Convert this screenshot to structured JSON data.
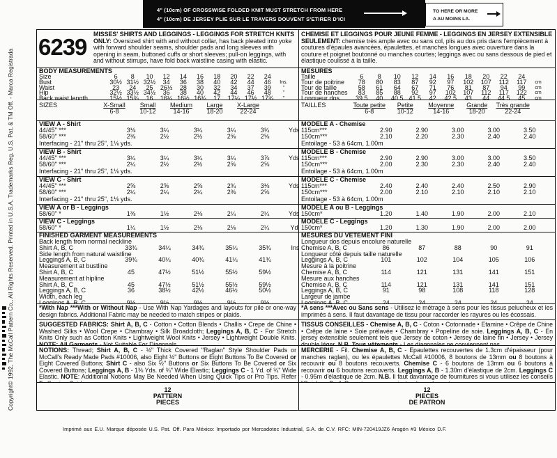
{
  "banner": {
    "line1": "4\" (10cm) OF CROSSWISE FOLDED KNIT MUST STRETCH FROM HERE",
    "line2": "4\" (10cm) DE JERSEY PLIE SUR LE TRAVERS DOUVENT S'ETIRER D'ICI",
    "box_line1": "TO HERE OR MORE",
    "box_line2": "A AU MOINS LA."
  },
  "side_text": "Copyright© 1992, The McCall Pattern Co., All Rights Reserved. Printed in U.S.A. Trademarks Reg. U.S. Pat. & TM Off. - Marca Registrada",
  "left": {
    "pattern_number": "6239",
    "description": [
      {
        "t": "MISSES' SHIRTS AND LEGGINGS - LEGGINGS FOR STRETCH KNITS ONLY:",
        "b": true
      },
      {
        "t": " Oversized shirt with and without collar, has back pleated into yoke with forward shoulder seams, shoulder pads and long sleeves with opening in seam, buttoned cuffs or short sleeves; pull-on leggings, with and without stirrups, have fold back waistline casing with elastic."
      }
    ],
    "body": {
      "heading": "BODY MEASUREMENTS",
      "rows": [
        {
          "label": "Size",
          "values": [
            "6",
            "8",
            "10",
            "12",
            "14",
            "16",
            "18",
            "20",
            "22",
            "24"
          ],
          "unit": ""
        },
        {
          "label": "Bust",
          "values": [
            "30½",
            "31½",
            "32½",
            "34",
            "36",
            "38",
            "40",
            "42",
            "44",
            "46"
          ],
          "unit": "Ins."
        },
        {
          "label": "Waist",
          "values": [
            "23",
            "24",
            "25",
            "26½",
            "28",
            "30",
            "32",
            "34",
            "37",
            "39"
          ],
          "unit": "\""
        },
        {
          "label": "Hip",
          "values": [
            "32½",
            "33½",
            "34½",
            "36",
            "38",
            "40",
            "42",
            "44",
            "46",
            "48"
          ],
          "unit": "\""
        },
        {
          "label": "Back waist length",
          "values": [
            "15½",
            "15¾",
            "16",
            "16¼",
            "16½",
            "16¾",
            "17",
            "17¼",
            "17½",
            "17¾"
          ],
          "unit": "\""
        }
      ]
    },
    "sizes": {
      "label": "SIZES",
      "items": [
        {
          "name": "X-Small",
          "range": "6-8"
        },
        {
          "name": "Small",
          "range": "10-12"
        },
        {
          "name": "Medium",
          "range": "14-16"
        },
        {
          "name": "Large",
          "range": "18-20"
        },
        {
          "name": "X-Large",
          "range": "22-24"
        }
      ]
    },
    "yardage": [
      {
        "heading": "VIEW A - Shirt",
        "rows": [
          {
            "label": "44/45\" ***",
            "values": [
              "3⅛",
              "3¼",
              "3¼",
              "3¼",
              "3¾"
            ],
            "unit": "Yds."
          },
          {
            "label": "58/60\" ***",
            "values": [
              "2⅜",
              "2½",
              "2½",
              "2⅝",
              "2⅝"
            ],
            "unit": "\""
          }
        ],
        "note": "Interfacing - 21\" thru 25\", 1⅛ yds."
      },
      {
        "heading": "VIEW B - Shirt",
        "rows": [
          {
            "label": "44/45\" ***",
            "values": [
              "3¼",
              "3¼",
              "3¼",
              "3¼",
              "3⅞"
            ],
            "unit": "Yds."
          },
          {
            "label": "58/60\" ***",
            "values": [
              "2¼",
              "2½",
              "2½",
              "2⅝",
              "2⅝"
            ],
            "unit": "\""
          }
        ],
        "note": "Interfacing - 21\" thru 25\", 1⅛ yds."
      },
      {
        "heading": "VIEW C - Shirt",
        "rows": [
          {
            "label": "44/45\" ***",
            "values": [
              "2⅝",
              "2⅝",
              "2⅝",
              "2¾",
              "3⅛"
            ],
            "unit": "Yds."
          },
          {
            "label": "58/60\" ***",
            "values": [
              "2¼",
              "2¼",
              "2¼",
              "2⅜",
              "2⅝"
            ],
            "unit": "\""
          }
        ],
        "note": "Interfacing - 21\" thru 25\", 1⅛ yds."
      },
      {
        "heading": "VIEW A or B - Leggings",
        "rows": [
          {
            "label": "58/60\" *",
            "values": [
              "1⅜",
              "1½",
              "2⅛",
              "2¼",
              "2¼"
            ],
            "unit": "Yds."
          }
        ]
      },
      {
        "heading": "VIEW C - Leggings",
        "rows": [
          {
            "label": "58/60\" *",
            "values": [
              "1¼",
              "1½",
              "2⅛",
              "2⅛",
              "2¼"
            ],
            "unit": "Yds"
          }
        ]
      }
    ],
    "finished": {
      "heading": "FINISHED GARMENT MEASUREMENTS",
      "rows": [
        {
          "label": "Back length from normal neckline"
        },
        {
          "label": "Shirt A, B, C",
          "values": [
            "33¾",
            "34¼",
            "34¾",
            "35¼",
            "35¾"
          ],
          "unit": "Ins."
        },
        {
          "label": "Side length from natural waistline"
        },
        {
          "label": "Leggings A, B, C",
          "values": [
            "39¾",
            "40¼",
            "40¾",
            "41¼",
            "41¾"
          ],
          "unit": "\""
        },
        {
          "label": "Measurement at bustline"
        },
        {
          "label": "Shirt A, B, C",
          "values": [
            "45",
            "47½",
            "51½",
            "55½",
            "59½"
          ],
          "unit": "\""
        },
        {
          "label": "Measurement at hipline"
        },
        {
          "label": "Shirt A, B, C",
          "values": [
            "45",
            "47½",
            "51½",
            "55½",
            "59½"
          ],
          "unit": "\""
        },
        {
          "label": "Leggings A, B, C",
          "values": [
            "36",
            "38½",
            "42½",
            "46½",
            "50½"
          ],
          "unit": "\""
        },
        {
          "label": "Width, each leg"
        },
        {
          "label": "Leggings A, B, C",
          "values": [
            "9½",
            "9½",
            "9½",
            "9½",
            "9½"
          ],
          "unit": "\""
        }
      ]
    },
    "nap": [
      {
        "t": "*With Nap ***With or Without Nap",
        "b": true
      },
      {
        "t": " - Use With Nap Yardages and layouts for pile or one-way design fabrics. Additional Fabric may be needed to match stripes or plaids."
      }
    ],
    "fabrics": [
      {
        "t": "SUGGESTED FABRICS: Shirt A, B, C",
        "b": true
      },
      {
        "t": " - Cotton • Cotton Blends • Challis • Crepe de Chine • Washed Silks • Wool Crepe • Chambray • Silk Broadcloth; "
      },
      {
        "t": "Leggings A, B, C",
        "b": true
      },
      {
        "t": " - For Stretch Knits Only such as Cotton Knits • Lightweight Wool Knits • Jersey • Lightweight Double Knits. "
      },
      {
        "t": "NOTE: All Garments",
        "b": true
      },
      {
        "t": " - Not Suitable For Diagonals."
      }
    ],
    "notions": [
      {
        "t": "NOTIONS:",
        "b": true
      },
      {
        "t": " Thread; "
      },
      {
        "t": "Shirt A, B, C",
        "b": true
      },
      {
        "t": " - ½\" Thick Covered \"Raglan\" Style Shoulder Pads or McCall's Ready Made Pads #10006, also Eight ½\" Buttons "
      },
      {
        "t": "or",
        "b": true
      },
      {
        "t": " Eight Buttons To Be Covered "
      },
      {
        "t": "or",
        "b": true
      },
      {
        "t": " Eight Covered Buttons; "
      },
      {
        "t": "Shirt C",
        "b": true
      },
      {
        "t": " - also Six ½\" Buttons "
      },
      {
        "t": "or",
        "b": true
      },
      {
        "t": " Six Buttons To Be Covered "
      },
      {
        "t": "or",
        "b": true
      },
      {
        "t": " Six Covered Buttons; "
      },
      {
        "t": "Leggings A, B",
        "b": true
      },
      {
        "t": " - 1⅜ Yds. of ¾\" Wide Elastic; "
      },
      {
        "t": "Leggings C",
        "b": true
      },
      {
        "t": " - 1 Yd. of ¾\" Wide Elastic. "
      },
      {
        "t": "NOTE",
        "b": true
      },
      {
        "t": ": Additional Notions May Be Needed When Using Quick Tips or Pro Tips. Refer To Sewing Guide."
      }
    ],
    "pieces": [
      "12",
      "PATTERN",
      "PIECES"
    ]
  },
  "right": {
    "description": [
      {
        "t": "CHEMISE ET LEGGINGS POUR JEUNE FEMME - LEGGINGS EN JERSEY EXTENSIBLE SEULEMENT:",
        "b": true
      },
      {
        "t": " chemise très ample avec ou sans col, plis au dos pris dans l'empiècement à coutures d'épaules avancées, épaulettes, et manches longues avec ouverture dans la couture et poignet boutonné ou manches courtes; leggings avec ou sans dessous de pied et élastique coulissé à la taille."
      }
    ],
    "body": {
      "heading": "MESURES",
      "rows": [
        {
          "label": "Taille",
          "values": [
            "6",
            "8",
            "10",
            "12",
            "14",
            "16",
            "18",
            "20",
            "22",
            "24"
          ],
          "unit": ""
        },
        {
          "label": "Tour de poitrine",
          "values": [
            "78",
            "80",
            "83",
            "87",
            "92",
            "97",
            "102",
            "107",
            "112",
            "117"
          ],
          "unit": "cm"
        },
        {
          "label": "Tour de taille",
          "values": [
            "58",
            "61",
            "64",
            "67",
            "71",
            "76",
            "81",
            "87",
            "94",
            "99"
          ],
          "unit": "cm"
        },
        {
          "label": "Tour de hanches",
          "values": [
            "83",
            "85",
            "88",
            "92",
            "97",
            "102",
            "107",
            "112",
            "117",
            "122"
          ],
          "unit": "cm"
        },
        {
          "label": "Longueur dos",
          "values": [
            "39.5",
            "40",
            "40.5",
            "41.5",
            "42",
            "42.5",
            "43",
            "44",
            "44.5",
            "45"
          ],
          "unit": "cm"
        }
      ]
    },
    "sizes": {
      "label": "TAILLES",
      "items": [
        {
          "name": "Toute petite",
          "range": "6-8"
        },
        {
          "name": "Petite",
          "range": "10-12"
        },
        {
          "name": "Moyenne",
          "range": "14-16"
        },
        {
          "name": "Grande",
          "range": "18-20"
        },
        {
          "name": "Très grande",
          "range": "22-24"
        }
      ]
    },
    "yardage": [
      {
        "heading": "MODELE A - Chemise",
        "rows": [
          {
            "label": "115cm***",
            "values": [
              "2.90",
              "2.90",
              "3.00",
              "3.00",
              "3.50"
            ],
            "unit": "m"
          },
          {
            "label": "150cm***",
            "values": [
              "2.10",
              "2.20",
              "2.30",
              "2.40",
              "2.40"
            ],
            "unit": "m"
          }
        ],
        "note": "Entoilage - 53 à 64cm, 1.00m"
      },
      {
        "heading": "MODELE B - Chemise",
        "rows": [
          {
            "label": "115cm***",
            "values": [
              "2.90",
              "2.90",
              "3.00",
              "3.00",
              "3.50"
            ],
            "unit": "m"
          },
          {
            "label": "150cm***",
            "values": [
              "2.00",
              "2.30",
              "2.30",
              "2.40",
              "2.40"
            ],
            "unit": "m"
          }
        ],
        "note": "Entoilage - 53 à 64cm, 1.00m"
      },
      {
        "heading": "MODELE C - Chemise",
        "rows": [
          {
            "label": "115cm***",
            "values": [
              "2.40",
              "2.40",
              "2.40",
              "2.50",
              "2.90"
            ],
            "unit": "m"
          },
          {
            "label": "150cm***",
            "values": [
              "2.00",
              "2.10",
              "2.10",
              "2.10",
              "2.10"
            ],
            "unit": "m"
          }
        ],
        "note": "Entoilage - 53 à 64cm, 1.00m"
      },
      {
        "heading": "MODELE A ou B - Leggings",
        "rows": [
          {
            "label": "150cm*",
            "values": [
              "1.20",
              "1.40",
              "1.90",
              "2.00",
              "2.10"
            ],
            "unit": "m"
          }
        ]
      },
      {
        "heading": "MODELE C - Leggings",
        "rows": [
          {
            "label": "150cm*",
            "values": [
              "1.20",
              "1.30",
              "1.90",
              "2.00",
              "2.00"
            ],
            "unit": "m"
          }
        ]
      }
    ],
    "finished": {
      "heading": "MESURES DU VETEMENT FINI",
      "rows": [
        {
          "label": "Longueur dos depuis encolure naturelle"
        },
        {
          "label": "Chemise A, B, C",
          "values": [
            "86",
            "87",
            "88",
            "90",
            "91"
          ],
          "unit": "cm"
        },
        {
          "label": "Longueur côté depuis taille naturelle"
        },
        {
          "label": "Leggings A, B, C",
          "values": [
            "101",
            "102",
            "104",
            "105",
            "106"
          ],
          "unit": "cm"
        },
        {
          "label": "Mesure à la poitrine"
        },
        {
          "label": "Chemise A, B, C",
          "values": [
            "114",
            "121",
            "131",
            "141",
            "151"
          ],
          "unit": "cm"
        },
        {
          "label": "Mesure aux hanches"
        },
        {
          "label": "Chemise A, B, C",
          "values": [
            "114",
            "121",
            "131",
            "141",
            "151"
          ],
          "unit": "cm"
        },
        {
          "label": "Leggings A, B, C",
          "values": [
            "91",
            "98",
            "108",
            "118",
            "128"
          ],
          "unit": "cm"
        },
        {
          "label": "Largeur de jambe"
        },
        {
          "label": "Leggings A, B, C",
          "values": [
            "24",
            "24",
            "24",
            "24",
            "24"
          ],
          "unit": "cm"
        }
      ]
    },
    "nap": [
      {
        "t": "*A sens ***Avec ou Sans sens",
        "b": true
      },
      {
        "t": " - Utilisez le métrage à sens pour les tissus pelucheux et les imprimés à sens. Il faut davantage de tissu pour raccorder les rayures ou les écossais."
      }
    ],
    "fabrics": [
      {
        "t": "TISSUS CONSEILLES - Chemise A, B, C",
        "b": true
      },
      {
        "t": " - Coton • Cotonnade • Etamine • Crêpe de Chine • Crêpe de laine • Soie prélavée • Chambray • Popeline de soie. "
      },
      {
        "t": "Leggings A, B, C",
        "b": true
      },
      {
        "t": " - En jersey extensible seulement tels que Jersey de coton • Jersey de laine fin • Jersey • Jersey double léger. "
      },
      {
        "t": "N.B. Tous vêtements",
        "b": true
      },
      {
        "t": " - Les diagonales ne conviennent pas."
      }
    ],
    "notions": [
      {
        "t": "MERCERIE",
        "b": true
      },
      {
        "t": " - Fil. "
      },
      {
        "t": "Chemise A, B, C",
        "b": true
      },
      {
        "t": " - Epaulettes recouvertes de 1.3cm d'épaisseur (pour manches raglan), ou les épaulettes McCall #10006, 8 boutons de 13mm "
      },
      {
        "t": "ou",
        "b": true
      },
      {
        "t": " 8 boutons à recouvrir "
      },
      {
        "t": "ou",
        "b": true
      },
      {
        "t": " 8 boutons recouverts. "
      },
      {
        "t": "Chemise C",
        "b": true
      },
      {
        "t": " - 6 boutons de 13mm "
      },
      {
        "t": "ou",
        "b": true
      },
      {
        "t": " 6 boutons à recouvrir "
      },
      {
        "t": "ou",
        "b": true
      },
      {
        "t": " 6 boutons recouverts. "
      },
      {
        "t": "Leggings A, B",
        "b": true
      },
      {
        "t": " - 1.30m d'élastique de 2cm. "
      },
      {
        "t": "Leggings C",
        "b": true
      },
      {
        "t": " - 0.95m d'élastique de 2cm. "
      },
      {
        "t": "N.B.",
        "b": true
      },
      {
        "t": " Il faut davantage de fournitures si vous utilisez les conseils \"Quick ou Pro\". Reportez-vous aux instructions de couture."
      }
    ],
    "pieces": [
      "12",
      "PIECES",
      "DE PATRON"
    ]
  },
  "footer": "Imprimé aux E.U. Marque déposée U.S. Pat. Off.    Para México: Importado por Mercadotec Industrial, S.A. de C.V.    RFC: MIN-720419JZ6         Aragón #3 México D.F."
}
